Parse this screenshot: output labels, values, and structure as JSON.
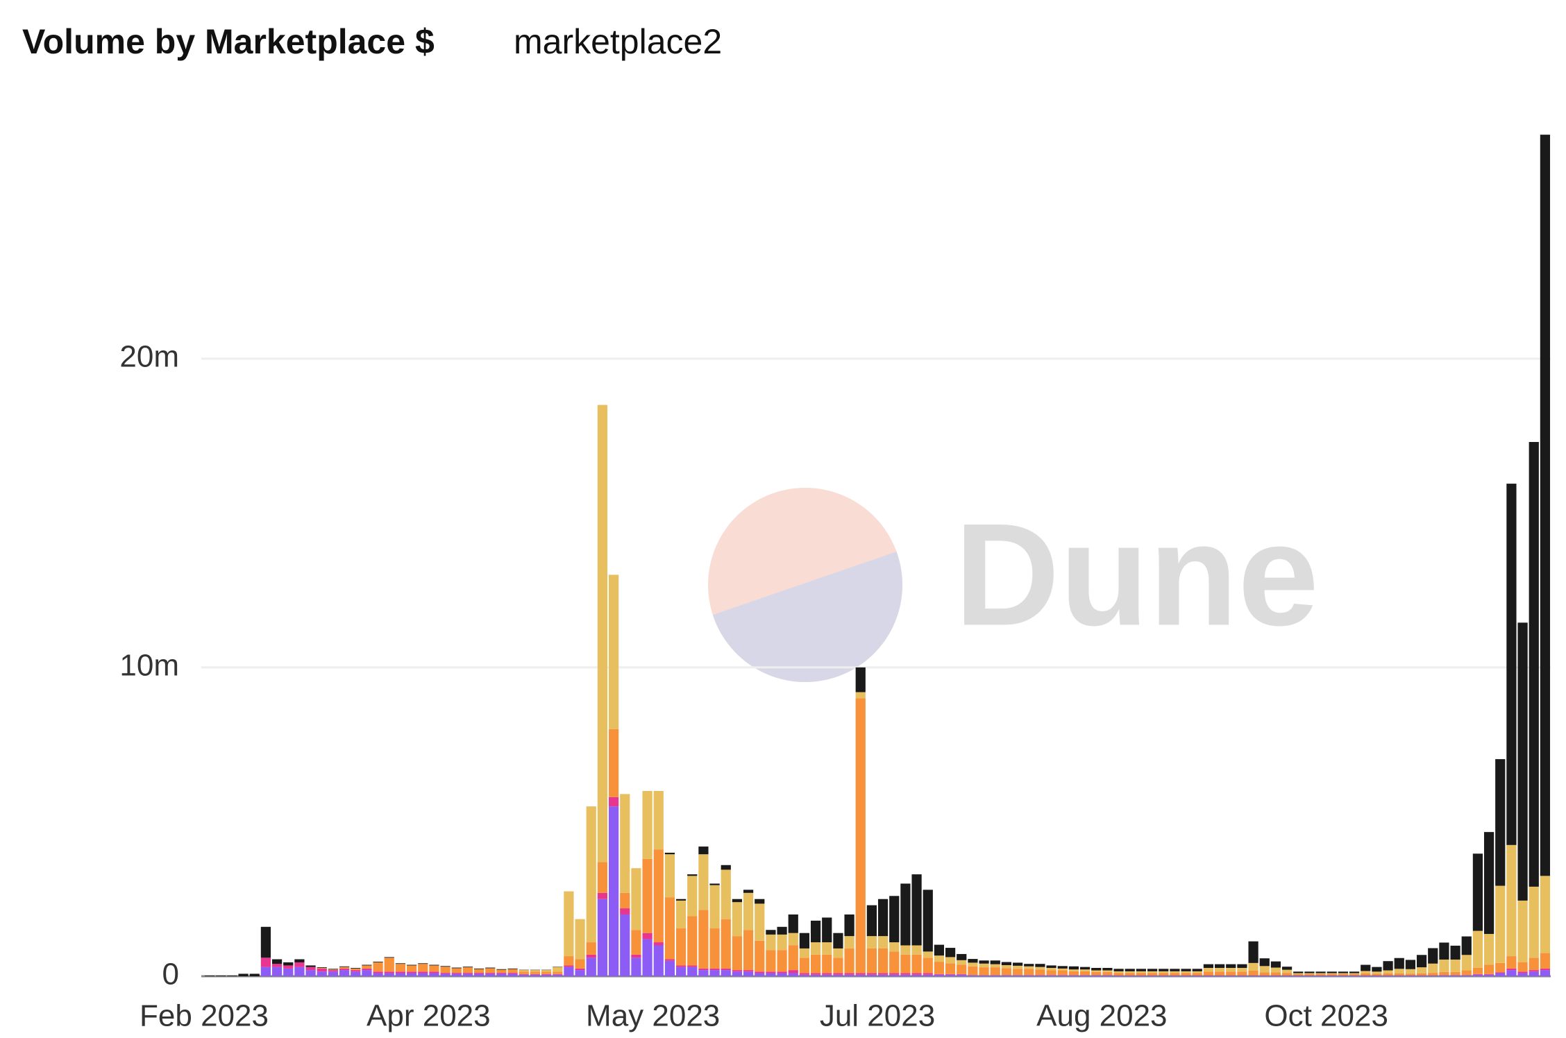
{
  "chart_data": {
    "type": "bar",
    "stacked": true,
    "title": "Volume by Marketplace $",
    "subtitle": "marketplace2",
    "watermark": "Dune",
    "categories": [
      "Feb 2023",
      null,
      null,
      null,
      null,
      null,
      null,
      null,
      null,
      null,
      null,
      null,
      null,
      null,
      null,
      null,
      null,
      null,
      null,
      null,
      "Apr 2023",
      null,
      null,
      null,
      null,
      null,
      null,
      null,
      null,
      null,
      null,
      null,
      null,
      null,
      null,
      null,
      null,
      null,
      null,
      null,
      "May 2023",
      null,
      null,
      null,
      null,
      null,
      null,
      null,
      null,
      null,
      null,
      null,
      null,
      null,
      null,
      null,
      null,
      null,
      null,
      null,
      "Jul 2023",
      null,
      null,
      null,
      null,
      null,
      null,
      null,
      null,
      null,
      null,
      null,
      null,
      null,
      null,
      null,
      null,
      null,
      null,
      null,
      "Aug 2023",
      null,
      null,
      null,
      null,
      null,
      null,
      null,
      null,
      null,
      null,
      null,
      null,
      null,
      null,
      null,
      null,
      null,
      null,
      null,
      "Oct 2023",
      null,
      null,
      null,
      null,
      null,
      null,
      null,
      null,
      null,
      null,
      null,
      null,
      null,
      null,
      null,
      null,
      null,
      null,
      null
    ],
    "series": [
      {
        "color": "#8c5cf5",
        "values": [
          0,
          0,
          0,
          0,
          0,
          0.3,
          0.3,
          0.25,
          0.3,
          0.2,
          0.15,
          0.15,
          0.2,
          0.15,
          0.2,
          0.1,
          0.1,
          0.1,
          0.1,
          0.1,
          0.1,
          0.08,
          0.08,
          0.08,
          0.08,
          0.08,
          0.08,
          0.08,
          0.05,
          0.05,
          0.05,
          0.05,
          0.3,
          0.2,
          0.6,
          2.5,
          5.5,
          2.0,
          0.6,
          1.2,
          1.0,
          0.5,
          0.3,
          0.3,
          0.2,
          0.2,
          0.2,
          0.15,
          0.15,
          0.1,
          0.1,
          0.1,
          0.1,
          0.05,
          0.05,
          0.05,
          0.05,
          0.05,
          0.05,
          0.05,
          0.05,
          0.05,
          0.05,
          0.05,
          0.05,
          0.05,
          0.05,
          0.05,
          0.03,
          0.03,
          0.03,
          0.03,
          0.03,
          0.03,
          0.03,
          0.03,
          0.03,
          0.03,
          0.03,
          0.03,
          0.03,
          0.02,
          0.02,
          0.02,
          0.02,
          0.02,
          0.02,
          0.02,
          0.02,
          0.02,
          0.02,
          0.02,
          0.02,
          0.02,
          0.02,
          0.02,
          0.02,
          0.02,
          0.02,
          0.02,
          0.02,
          0.02,
          0.02,
          0.02,
          0.02,
          0.02,
          0.02,
          0.02,
          0.02,
          0.02,
          0.03,
          0.03,
          0.03,
          0.05,
          0.05,
          0.1,
          0.2,
          0.1,
          0.15,
          0.2
        ]
      },
      {
        "color": "#e8358f",
        "values": [
          0,
          0,
          0,
          0,
          0,
          0.3,
          0.1,
          0.1,
          0.15,
          0.1,
          0.1,
          0.05,
          0.05,
          0.05,
          0.05,
          0.05,
          0.05,
          0.05,
          0.05,
          0.05,
          0.05,
          0.03,
          0.03,
          0.03,
          0.03,
          0.03,
          0.03,
          0.03,
          0.02,
          0.02,
          0.02,
          0.02,
          0.05,
          0.05,
          0.1,
          0.2,
          0.3,
          0.2,
          0.1,
          0.2,
          0.1,
          0.05,
          0.05,
          0.05,
          0.05,
          0.05,
          0.05,
          0.05,
          0.05,
          0.05,
          0.05,
          0.05,
          0.1,
          0.05,
          0.05,
          0.05,
          0.05,
          0.05,
          0.05,
          0.05,
          0.05,
          0.05,
          0.05,
          0.05,
          0.05,
          0.02,
          0.02,
          0.02,
          0.01,
          0.01,
          0.01,
          0.01,
          0.01,
          0.01,
          0.01,
          0.01,
          0.01,
          0.01,
          0.01,
          0.01,
          0.01,
          0.01,
          0.01,
          0.01,
          0.01,
          0.01,
          0.01,
          0.01,
          0.01,
          0.01,
          0.01,
          0.01,
          0.01,
          0.01,
          0.01,
          0.01,
          0.01,
          0.01,
          0.01,
          0.01,
          0.01,
          0.01,
          0.01,
          0.01,
          0.01,
          0.01,
          0.01,
          0.01,
          0.01,
          0.01,
          0.01,
          0.01,
          0.01,
          0.02,
          0.02,
          0.03,
          0.05,
          0.05,
          0.05,
          0.05
        ]
      },
      {
        "color": "#f7923a",
        "values": [
          0,
          0,
          0,
          0,
          0,
          0,
          0,
          0,
          0,
          0,
          0.02,
          0.02,
          0.05,
          0.05,
          0.1,
          0.3,
          0.45,
          0.25,
          0.2,
          0.25,
          0.2,
          0.2,
          0.15,
          0.18,
          0.12,
          0.15,
          0.1,
          0.12,
          0.08,
          0.08,
          0.08,
          0.08,
          0.3,
          0.3,
          0.4,
          1.0,
          2.2,
          0.5,
          0.8,
          2.4,
          3.0,
          2.0,
          1.2,
          1.6,
          1.9,
          1.3,
          1.6,
          1.1,
          1.3,
          1.0,
          0.7,
          0.7,
          0.8,
          0.5,
          0.6,
          0.6,
          0.5,
          0.8,
          8.9,
          0.8,
          0.8,
          0.7,
          0.6,
          0.6,
          0.5,
          0.4,
          0.35,
          0.3,
          0.28,
          0.25,
          0.25,
          0.22,
          0.2,
          0.2,
          0.18,
          0.15,
          0.15,
          0.12,
          0.12,
          0.1,
          0.1,
          0.08,
          0.08,
          0.08,
          0.08,
          0.08,
          0.08,
          0.08,
          0.08,
          0.12,
          0.12,
          0.12,
          0.12,
          0.15,
          0.1,
          0.1,
          0.08,
          0.04,
          0.04,
          0.04,
          0.04,
          0.04,
          0.04,
          0.06,
          0.05,
          0.06,
          0.06,
          0.05,
          0.06,
          0.08,
          0.1,
          0.1,
          0.15,
          0.2,
          0.3,
          0.3,
          0.4,
          0.3,
          0.4,
          0.5
        ]
      },
      {
        "color": "#e8bf5e",
        "values": [
          0,
          0,
          0,
          0,
          0,
          0,
          0,
          0,
          0,
          0,
          0,
          0,
          0,
          0,
          0,
          0,
          0,
          0,
          0,
          0,
          0,
          0,
          0,
          0,
          0,
          0,
          0,
          0,
          0.05,
          0.05,
          0.05,
          0.15,
          2.1,
          1.3,
          4.4,
          14.8,
          5.0,
          3.2,
          2.0,
          2.2,
          1.9,
          1.4,
          0.9,
          1.3,
          1.8,
          1.4,
          1.6,
          1.1,
          1.2,
          1.2,
          0.5,
          0.5,
          0.4,
          0.3,
          0.4,
          0.4,
          0.3,
          0.4,
          0.2,
          0.4,
          0.4,
          0.3,
          0.3,
          0.3,
          0.2,
          0.2,
          0.2,
          0.15,
          0.12,
          0.12,
          0.1,
          0.1,
          0.1,
          0.08,
          0.08,
          0.08,
          0.06,
          0.06,
          0.06,
          0.05,
          0.05,
          0.05,
          0.05,
          0.05,
          0.05,
          0.05,
          0.05,
          0.05,
          0.05,
          0.12,
          0.12,
          0.12,
          0.12,
          0.25,
          0.2,
          0.15,
          0.1,
          0.03,
          0.03,
          0.03,
          0.03,
          0.03,
          0.03,
          0.08,
          0.07,
          0.1,
          0.15,
          0.15,
          0.2,
          0.3,
          0.4,
          0.4,
          0.5,
          1.2,
          1.0,
          2.5,
          3.6,
          2.0,
          2.3,
          2.5
        ]
      },
      {
        "color": "#1a1a1a",
        "values": [
          0.02,
          0.02,
          0.02,
          0.08,
          0.08,
          1.0,
          0.15,
          0.1,
          0.1,
          0.05,
          0.02,
          0.02,
          0.02,
          0.02,
          0.02,
          0.02,
          0.02,
          0.02,
          0.02,
          0.02,
          0.02,
          0.02,
          0.02,
          0.02,
          0.02,
          0.02,
          0.02,
          0.02,
          0.01,
          0.01,
          0.01,
          0.01,
          0,
          0,
          0,
          0,
          0,
          0,
          0,
          0,
          0,
          0.05,
          0.05,
          0.05,
          0.25,
          0.05,
          0.15,
          0.1,
          0.1,
          0.15,
          0.15,
          0.25,
          0.6,
          0.5,
          0.7,
          0.8,
          0.5,
          0.7,
          0.8,
          1.0,
          1.2,
          1.5,
          2.0,
          2.3,
          2.0,
          0.35,
          0.3,
          0.2,
          0.12,
          0.1,
          0.12,
          0.1,
          0.1,
          0.08,
          0.1,
          0.08,
          0.08,
          0.1,
          0.08,
          0.08,
          0.08,
          0.08,
          0.08,
          0.08,
          0.08,
          0.08,
          0.08,
          0.08,
          0.08,
          0.12,
          0.12,
          0.12,
          0.12,
          0.7,
          0.25,
          0.2,
          0.1,
          0.05,
          0.05,
          0.05,
          0.05,
          0.05,
          0.05,
          0.2,
          0.15,
          0.3,
          0.35,
          0.3,
          0.4,
          0.5,
          0.55,
          0.45,
          0.6,
          2.5,
          3.3,
          4.1,
          11.7,
          9.0,
          14.4,
          24
        ]
      }
    ],
    "ylim": [
      0,
      27.5
    ],
    "yticks": [
      0,
      {
        "value": 10,
        "label": "10m"
      },
      {
        "value": 20,
        "label": "20m"
      }
    ],
    "grid": true
  }
}
